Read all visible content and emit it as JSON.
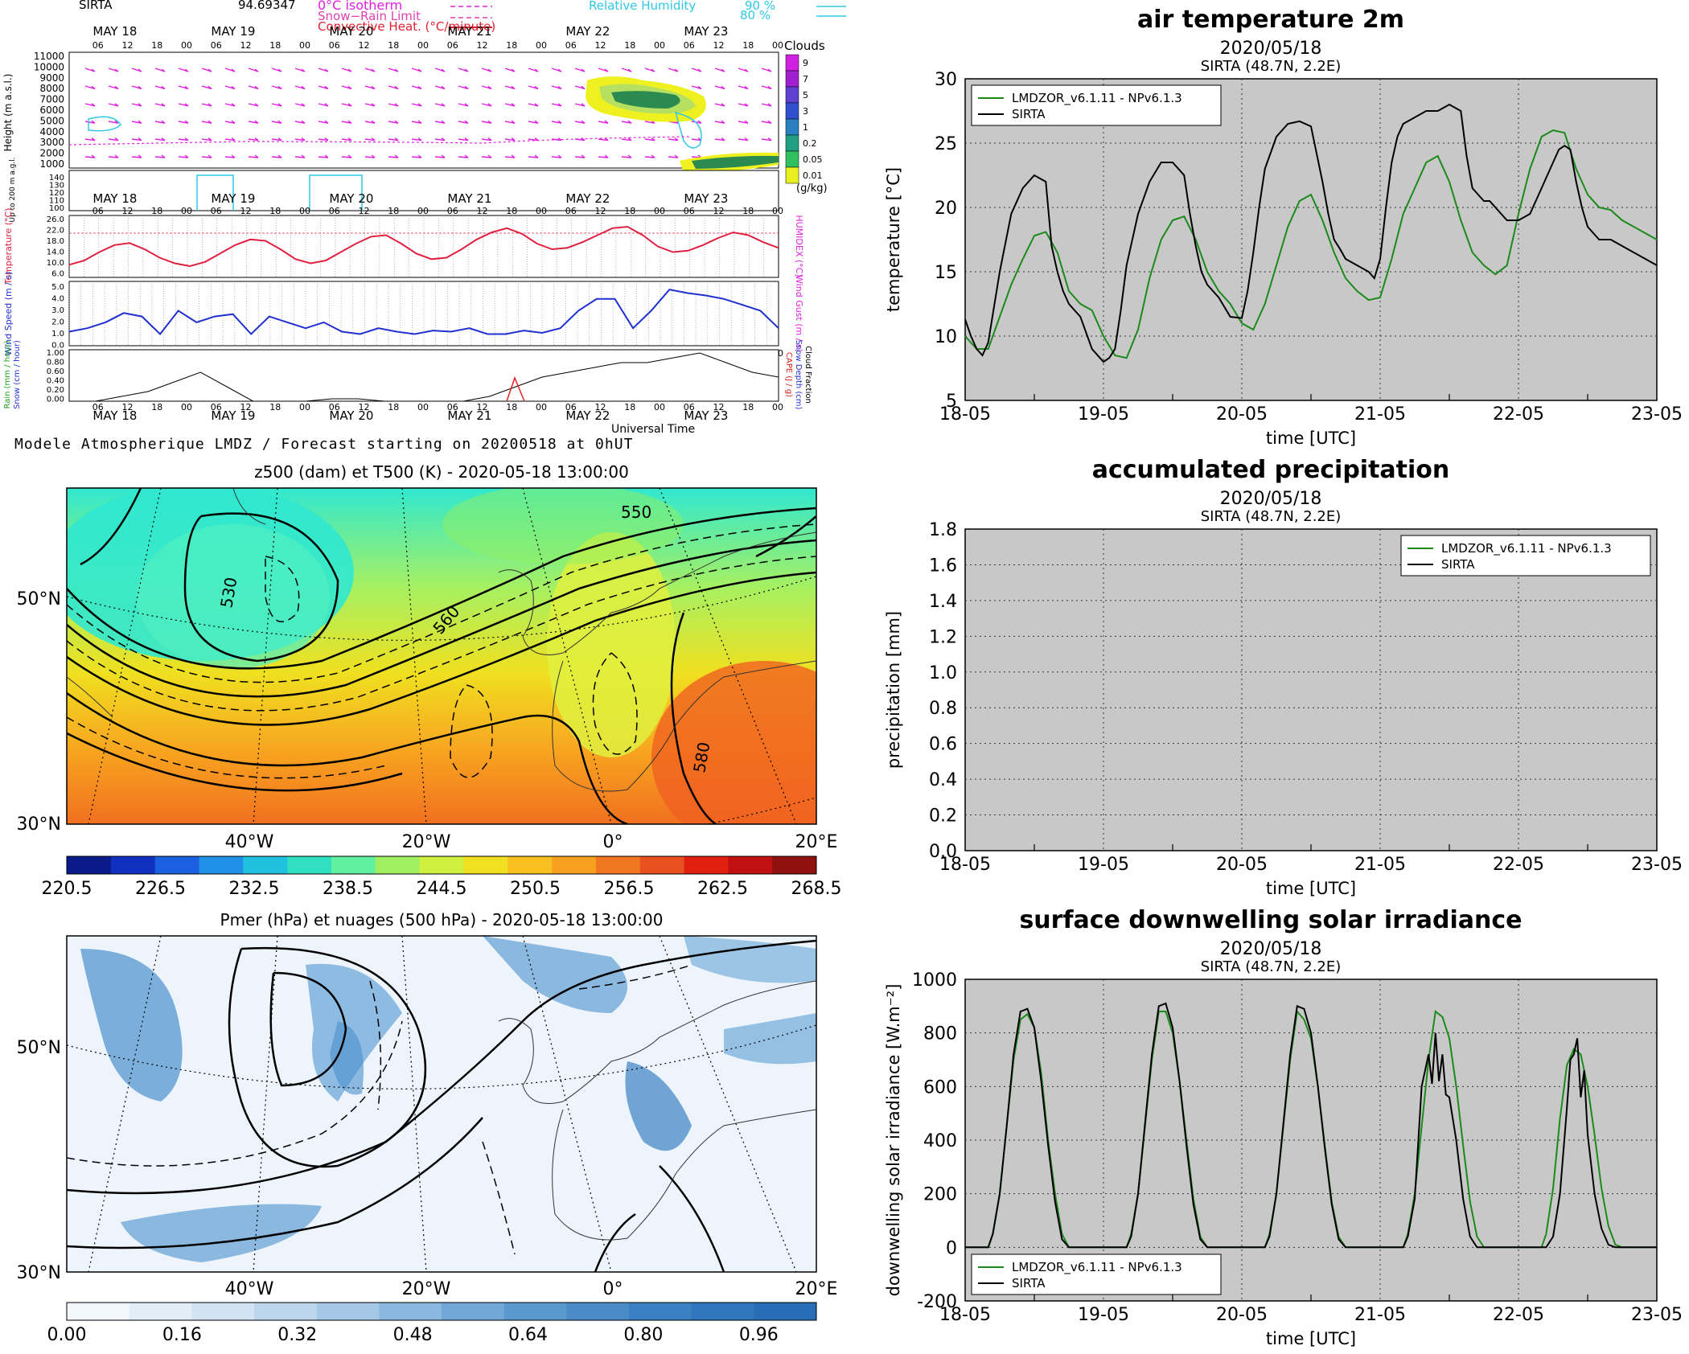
{
  "meteogram": {
    "station": "SIRTA",
    "altitude_value": "94.69347",
    "legend_labels": [
      "0°C isotherm",
      "Snow−Rain Limit",
      "Convective Heat. (°C/minute)"
    ],
    "rh_label": "Relative Humidity",
    "rh_values": [
      "90 %",
      "80 %"
    ],
    "clouds_title": "Clouds",
    "clouds_levels": [
      "9",
      "7",
      "5",
      "3",
      "1",
      "0.2",
      "0.05",
      "0.01"
    ],
    "clouds_unit": "(g/kg)",
    "days": [
      "MAY 18",
      "MAY 19",
      "MAY 20",
      "MAY 21",
      "MAY 22",
      "MAY 23"
    ],
    "hours": [
      "06",
      "12",
      "18",
      "00"
    ],
    "height_ticks": [
      "11000",
      "10000",
      "9000",
      "8000",
      "7000",
      "6000",
      "5000",
      "4000",
      "3000",
      "2000",
      "1000"
    ],
    "height_label": "Height (m a.s.l.)",
    "low_ticks": [
      "140",
      "130",
      "120",
      "110",
      "100"
    ],
    "low_label": "Up to 200 m a.g.l.",
    "temp_ticks": [
      "26.0",
      "22.0",
      "18.0",
      "14.0",
      "10.0",
      "6.0"
    ],
    "temp_label": "Temperature (°C)",
    "humidex_label": "HUMIDEX (°C)",
    "wind_ticks": [
      "5.0",
      "4.0",
      "3.0",
      "2.0",
      "1.0",
      "0.0"
    ],
    "wind_label": "Wind Speed (m / s)",
    "gust_label": "Wind Gust (m / s)",
    "rain_ticks": [
      "1.00",
      "0.80",
      "0.60",
      "0.40",
      "0.20",
      "0.00"
    ],
    "rain_label": "Rain (mm / hour)",
    "snow_label": "Snow (cm / hour)",
    "cape_label": "CAPE (J / g)",
    "snowdepth_label": "Snow Depth (cm)",
    "cloudfrac_label": "Cloud Fraction",
    "ut_label": "Universal Time",
    "footer": "Modele Atmospherique LMDZ / Forecast starting on 20200518 at 0hUT",
    "temperature_series": [
      10.5,
      12.0,
      15.0,
      17.5,
      18.2,
      16.0,
      13.0,
      11.0,
      10.0,
      11.5,
      14.5,
      17.5,
      19.5,
      19.0,
      16.0,
      12.5,
      11.0,
      12.0,
      15.0,
      18.0,
      20.5,
      21.0,
      18.0,
      14.5,
      12.5,
      13.0,
      16.0,
      19.5,
      22.0,
      23.5,
      21.5,
      18.0,
      16.0,
      16.5,
      18.5,
      21.0,
      23.5,
      24.0,
      21.0,
      17.0,
      15.0,
      15.5,
      17.5,
      20.0,
      22.0,
      21.0,
      18.5,
      16.5
    ],
    "wind_series": [
      1.2,
      1.5,
      2.0,
      2.8,
      2.5,
      1.0,
      3.0,
      2.0,
      2.5,
      2.7,
      1.0,
      2.5,
      2.0,
      1.5,
      2.0,
      1.2,
      1.0,
      1.5,
      1.2,
      1.0,
      1.3,
      1.2,
      1.5,
      1.0,
      1.0,
      1.3,
      1.1,
      1.5,
      3.0,
      4.0,
      4.0,
      1.5,
      3.0,
      4.8,
      4.5,
      4.3,
      4.0,
      3.5,
      3.0,
      1.5
    ],
    "cloudfrac_series": [
      0.0,
      0.0,
      0.1,
      0.2,
      0.4,
      0.6,
      0.3,
      0.0,
      0.0,
      0.0,
      0.05,
      0.05,
      0.0,
      0.0,
      0.0,
      0.0,
      0.1,
      0.3,
      0.5,
      0.6,
      0.7,
      0.8,
      0.8,
      0.9,
      1.0,
      0.8,
      0.6,
      0.5
    ]
  },
  "map_z500": {
    "title": "z500 (dam) et T500 (K) - 2020-05-18 13:00:00",
    "lat_labels": [
      "50°N",
      "30°N"
    ],
    "lon_labels": [
      "40°W",
      "20°W",
      "0°",
      "20°E"
    ],
    "contour_labels": [
      "530",
      "550",
      "560",
      "580"
    ],
    "colorbar_ticks": [
      "220.5",
      "226.5",
      "232.5",
      "238.5",
      "244.5",
      "250.5",
      "256.5",
      "262.5",
      "268.5"
    ]
  },
  "map_pmer": {
    "title": "Pmer (hPa) et nuages (500 hPa) - 2020-05-18 13:00:00",
    "lat_labels": [
      "50°N",
      "30°N"
    ],
    "lon_labels": [
      "40°W",
      "20°W",
      "0°",
      "20°E"
    ],
    "colorbar_ticks": [
      "0.00",
      "0.16",
      "0.32",
      "0.48",
      "0.64",
      "0.80",
      "0.96"
    ]
  },
  "chart_data": [
    {
      "type": "line",
      "title": "air temperature 2m",
      "subtitle": "2020/05/18",
      "subtitle2": "SIRTA (48.7N, 2.2E)",
      "xlabel": "time [UTC]",
      "ylabel": "temperature [°C]",
      "x_ticks": [
        "18-05",
        "19-05",
        "20-05",
        "21-05",
        "22-05",
        "23-05"
      ],
      "xlim": [
        0,
        5
      ],
      "ylim": [
        5,
        30
      ],
      "y_ticks": [
        5,
        10,
        15,
        20,
        25,
        30
      ],
      "grid": true,
      "legend_position": "top-left",
      "series": [
        {
          "name": "LMDZOR_v6.1.11 - NPv6.1.3",
          "color": "#1a8a1a",
          "x": [
            0,
            0.083,
            0.167,
            0.25,
            0.333,
            0.417,
            0.5,
            0.583,
            0.667,
            0.75,
            0.833,
            0.917,
            1.0,
            1.083,
            1.167,
            1.25,
            1.333,
            1.417,
            1.5,
            1.583,
            1.667,
            1.75,
            1.833,
            1.917,
            2.0,
            2.083,
            2.167,
            2.25,
            2.333,
            2.417,
            2.5,
            2.583,
            2.667,
            2.75,
            2.833,
            2.917,
            3.0,
            3.083,
            3.167,
            3.25,
            3.333,
            3.417,
            3.5,
            3.583,
            3.667,
            3.75,
            3.833,
            3.917,
            4.0,
            4.083,
            4.167,
            4.25,
            4.333,
            4.417,
            4.5,
            4.583,
            4.667,
            4.75,
            4.833,
            4.917,
            5.0
          ],
          "y": [
            10.0,
            9.0,
            9.0,
            11.5,
            14.0,
            16.0,
            17.8,
            18.1,
            16.5,
            13.5,
            12.5,
            12.0,
            10.0,
            8.5,
            8.3,
            10.5,
            14.5,
            17.5,
            19.0,
            19.3,
            17.5,
            15.0,
            13.5,
            12.5,
            11.0,
            10.5,
            12.5,
            15.5,
            18.5,
            20.5,
            21.0,
            19.0,
            16.5,
            14.5,
            13.5,
            12.8,
            13.0,
            16.0,
            19.5,
            21.5,
            23.5,
            24.0,
            22.0,
            19.0,
            16.5,
            15.5,
            14.8,
            15.5,
            19.5,
            23.0,
            25.5,
            26.0,
            25.8,
            23.0,
            21.0,
            20.0,
            19.8,
            19.0,
            18.5,
            18.0,
            17.5
          ]
        },
        {
          "name": "SIRTA",
          "color": "#000000",
          "x": [
            0,
            0.042,
            0.083,
            0.125,
            0.167,
            0.25,
            0.333,
            0.417,
            0.5,
            0.583,
            0.625,
            0.667,
            0.708,
            0.75,
            0.833,
            0.917,
            1.0,
            1.042,
            1.083,
            1.125,
            1.167,
            1.25,
            1.333,
            1.417,
            1.5,
            1.583,
            1.625,
            1.667,
            1.708,
            1.75,
            1.833,
            1.917,
            2.0,
            2.042,
            2.083,
            2.125,
            2.167,
            2.25,
            2.333,
            2.417,
            2.5,
            2.583,
            2.625,
            2.667,
            2.708,
            2.75,
            2.833,
            2.917,
            2.958,
            3.0,
            3.042,
            3.083,
            3.125,
            3.167,
            3.25,
            3.333,
            3.417,
            3.5,
            3.583,
            3.625,
            3.667,
            3.708,
            3.75,
            3.792,
            3.833,
            3.875,
            3.917,
            4.0,
            4.083,
            4.167,
            4.25,
            4.292,
            4.333,
            4.375,
            4.417,
            4.458,
            4.5,
            4.583,
            4.667,
            4.75,
            4.833,
            4.917,
            5.0
          ],
          "y": [
            11.3,
            10.0,
            9.0,
            8.5,
            9.5,
            15.0,
            19.5,
            21.5,
            22.5,
            22.0,
            17.0,
            15.0,
            13.5,
            12.5,
            11.5,
            9.0,
            8.0,
            8.3,
            9.0,
            12.0,
            15.5,
            19.5,
            22.0,
            23.5,
            23.5,
            22.5,
            19.5,
            17.0,
            15.0,
            14.0,
            13.0,
            11.5,
            11.4,
            13.5,
            16.5,
            20.0,
            23.0,
            25.5,
            26.5,
            26.7,
            26.3,
            22.0,
            19.5,
            17.5,
            16.8,
            16.0,
            15.5,
            15.0,
            14.5,
            16.0,
            20.0,
            23.5,
            25.5,
            26.5,
            27.0,
            27.5,
            27.5,
            28.0,
            27.5,
            24.0,
            21.5,
            21.0,
            20.5,
            20.5,
            20.0,
            19.5,
            19.0,
            19.0,
            19.5,
            21.5,
            23.5,
            24.5,
            24.8,
            24.5,
            22.0,
            20.0,
            18.5,
            17.5,
            17.5,
            17.0,
            16.5,
            16.0,
            15.5
          ]
        }
      ]
    },
    {
      "type": "line",
      "title": "accumulated precipitation",
      "subtitle": "2020/05/18",
      "subtitle2": "SIRTA (48.7N, 2.2E)",
      "xlabel": "time [UTC]",
      "ylabel": "precipitation [mm]",
      "x_ticks": [
        "18-05",
        "19-05",
        "20-05",
        "21-05",
        "22-05",
        "23-05"
      ],
      "xlim": [
        0,
        5
      ],
      "ylim": [
        0,
        1.8
      ],
      "y_ticks": [
        "0.0",
        "0.2",
        "0.4",
        "0.6",
        "0.8",
        "1.0",
        "1.2",
        "1.4",
        "1.6",
        "1.8"
      ],
      "grid": true,
      "legend_position": "top-right",
      "series": [
        {
          "name": "LMDZOR_v6.1.11 - NPv6.1.3",
          "color": "#1a8a1a",
          "x": [],
          "y": []
        },
        {
          "name": "SIRTA",
          "color": "#000000",
          "x": [],
          "y": []
        }
      ]
    },
    {
      "type": "line",
      "title": "surface downwelling solar irradiance",
      "subtitle": "2020/05/18",
      "subtitle2": "SIRTA (48.7N, 2.2E)",
      "xlabel": "time [UTC]",
      "ylabel": "downwelling solar irradiance [W.m⁻²]",
      "x_ticks": [
        "18-05",
        "19-05",
        "20-05",
        "21-05",
        "22-05",
        "23-05"
      ],
      "xlim": [
        0,
        5
      ],
      "ylim": [
        -200,
        1000
      ],
      "y_ticks": [
        -200,
        0,
        200,
        400,
        600,
        800,
        1000
      ],
      "grid": true,
      "legend_position": "bottom-left",
      "series": [
        {
          "name": "LMDZOR_v6.1.11 - NPv6.1.3",
          "color": "#1a8a1a",
          "x": [
            0,
            0.167,
            0.2,
            0.25,
            0.3,
            0.35,
            0.4,
            0.45,
            0.5,
            0.55,
            0.6,
            0.65,
            0.7,
            0.75,
            0.8,
            1.0,
            1.167,
            1.2,
            1.25,
            1.3,
            1.35,
            1.4,
            1.45,
            1.5,
            1.55,
            1.6,
            1.65,
            1.7,
            1.75,
            1.8,
            2.0,
            2.167,
            2.2,
            2.25,
            2.3,
            2.35,
            2.4,
            2.45,
            2.5,
            2.55,
            2.6,
            2.65,
            2.7,
            2.75,
            2.8,
            3.0,
            3.167,
            3.2,
            3.25,
            3.3,
            3.35,
            3.4,
            3.45,
            3.5,
            3.55,
            3.6,
            3.65,
            3.7,
            3.75,
            3.8,
            4.0,
            4.167,
            4.2,
            4.25,
            4.3,
            4.35,
            4.4,
            4.45,
            4.5,
            4.55,
            4.6,
            4.65,
            4.7,
            4.75,
            4.8,
            5.0
          ],
          "y": [
            0,
            0,
            50,
            200,
            450,
            700,
            850,
            870,
            820,
            650,
            400,
            200,
            50,
            0,
            0,
            0,
            0,
            50,
            200,
            450,
            700,
            880,
            880,
            800,
            620,
            400,
            180,
            40,
            0,
            0,
            0,
            0,
            50,
            200,
            450,
            700,
            880,
            850,
            780,
            600,
            380,
            170,
            40,
            0,
            0,
            0,
            0,
            50,
            200,
            450,
            700,
            880,
            860,
            780,
            600,
            380,
            170,
            40,
            0,
            0,
            0,
            0,
            50,
            220,
            480,
            680,
            740,
            720,
            600,
            420,
            220,
            80,
            10,
            0,
            0,
            0
          ]
        },
        {
          "name": "SIRTA",
          "color": "#000000",
          "x": [
            0,
            0.167,
            0.2,
            0.25,
            0.3,
            0.35,
            0.4,
            0.45,
            0.5,
            0.55,
            0.6,
            0.65,
            0.7,
            0.75,
            0.8,
            1.0,
            1.167,
            1.2,
            1.25,
            1.3,
            1.35,
            1.4,
            1.45,
            1.5,
            1.55,
            1.6,
            1.65,
            1.7,
            1.75,
            1.8,
            2.0,
            2.167,
            2.2,
            2.25,
            2.3,
            2.35,
            2.4,
            2.45,
            2.5,
            2.55,
            2.6,
            2.65,
            2.7,
            2.75,
            2.8,
            3.0,
            3.167,
            3.2,
            3.25,
            3.3,
            3.35,
            3.375,
            3.4,
            3.425,
            3.45,
            3.475,
            3.5,
            3.55,
            3.6,
            3.65,
            3.7,
            3.75,
            3.8,
            4.0,
            4.2,
            4.25,
            4.3,
            4.35,
            4.375,
            4.4,
            4.425,
            4.45,
            4.475,
            4.5,
            4.55,
            4.6,
            4.65,
            4.7,
            4.75,
            4.8,
            5.0
          ],
          "y": [
            0,
            0,
            50,
            200,
            450,
            720,
            880,
            890,
            820,
            620,
            380,
            170,
            30,
            0,
            0,
            0,
            0,
            40,
            200,
            460,
            720,
            900,
            910,
            820,
            620,
            380,
            160,
            30,
            0,
            0,
            0,
            0,
            40,
            200,
            460,
            720,
            900,
            890,
            800,
            600,
            370,
            160,
            30,
            0,
            0,
            0,
            0,
            40,
            180,
            600,
            720,
            610,
            800,
            620,
            720,
            570,
            560,
            400,
            180,
            40,
            0,
            0,
            0,
            0,
            0,
            40,
            200,
            520,
            700,
            720,
            780,
            560,
            660,
            420,
            200,
            70,
            10,
            0,
            0,
            0,
            0
          ]
        }
      ]
    }
  ]
}
